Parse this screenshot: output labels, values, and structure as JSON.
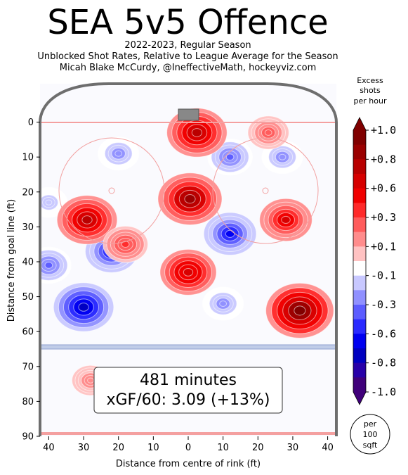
{
  "header": {
    "title": "SEA 5v5 Offence",
    "subtitle_1": "2022-2023, Regular Season",
    "subtitle_2": "Unblocked Shot Rates, Relative to League Average for the Season",
    "subtitle_3": "Micah Blake McCurdy, @IneffectiveMath, hockeyviz.com"
  },
  "summary": {
    "minutes": "481 minutes",
    "xgf": "xGF/60: 3.09 (+13%)"
  },
  "colorbar": {
    "title_lines": [
      "Excess",
      "shots",
      "per hour"
    ],
    "tick_labels": [
      "+1.0",
      "+0.8",
      "+0.6",
      "+0.3",
      "+0.1",
      "-0.1",
      "-0.3",
      "-0.6",
      "-0.8",
      "-1.0"
    ],
    "unit_lines": [
      "per",
      "100",
      "sqft"
    ],
    "colors": [
      "#800000",
      "#9a0000",
      "#b80000",
      "#d60000",
      "#f00000",
      "#ff2a2a",
      "#ff5c5c",
      "#ff8c8c",
      "#ffc2c2",
      "#ffffff",
      "#c8c8ff",
      "#9090ff",
      "#5c5cff",
      "#2a2aff",
      "#0000f0",
      "#0000c0",
      "#2800a8",
      "#40007a"
    ]
  },
  "chart_data": {
    "type": "heatmap",
    "title": "SEA 5v5 Offence",
    "xlabel": "Distance from centre of rink (ft)",
    "ylabel": "Distance from goal line (ft)",
    "x_ticks": [
      "40",
      "30",
      "20",
      "10",
      "0",
      "10",
      "20",
      "30",
      "40"
    ],
    "y_ticks": [
      "0",
      "10",
      "20",
      "30",
      "40",
      "50",
      "60",
      "70",
      "80",
      "90"
    ],
    "xlim": [
      -42.5,
      42.5
    ],
    "ylim": [
      90,
      -11
    ],
    "colorbar_range": [
      -1.0,
      1.0
    ],
    "hot_spots": [
      {
        "x": 2.5,
        "y": 3,
        "excess": 0.8
      },
      {
        "x": 0.5,
        "y": 22,
        "excess": 0.9
      },
      {
        "x": 0,
        "y": 43,
        "excess": 0.7
      },
      {
        "x": -29,
        "y": 28,
        "excess": 0.8
      },
      {
        "x": 28,
        "y": 28,
        "excess": 0.6
      },
      {
        "x": 32,
        "y": 54,
        "excess": 1.0
      },
      {
        "x": -18,
        "y": 35,
        "excess": 0.4
      },
      {
        "x": 23,
        "y": 3,
        "excess": 0.3
      },
      {
        "x": -28,
        "y": 74,
        "excess": 0.2
      }
    ],
    "cold_spots": [
      {
        "x": -30,
        "y": 53,
        "excess": -0.8
      },
      {
        "x": 12,
        "y": 32,
        "excess": -0.6
      },
      {
        "x": -22,
        "y": 37,
        "excess": -0.6
      },
      {
        "x": -20,
        "y": 9,
        "excess": -0.3
      },
      {
        "x": 12,
        "y": 10,
        "excess": -0.4
      },
      {
        "x": -40,
        "y": 41,
        "excess": -0.4
      },
      {
        "x": 10,
        "y": 52,
        "excess": -0.3
      },
      {
        "x": 27,
        "y": 10,
        "excess": -0.3
      },
      {
        "x": -40,
        "y": 23,
        "excess": -0.2
      }
    ]
  }
}
